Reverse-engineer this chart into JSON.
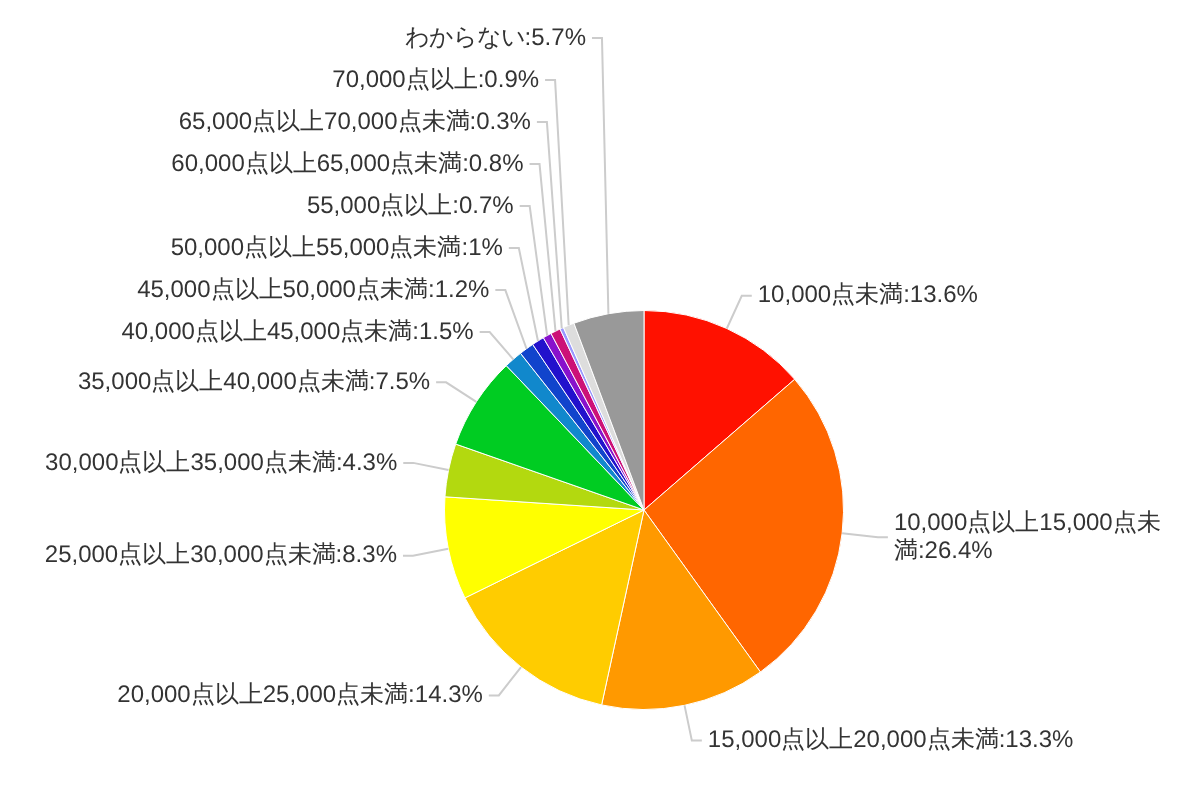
{
  "chart_data": {
    "type": "pie",
    "categories": [
      "10,000点未満",
      "10,000点以上15,000点未満",
      "15,000点以上20,000点未満",
      "20,000点以上25,000点未満",
      "25,000点以上30,000点未満",
      "30,000点以上35,000点未満",
      "35,000点以上40,000点未満",
      "40,000点以上45,000点未満",
      "45,000点以上50,000点未満",
      "50,000点以上55,000点未満",
      "55,000点以上",
      "60,000点以上65,000点未満",
      "65,000点以上70,000点未満",
      "70,000点以上",
      "わからない"
    ],
    "values": [
      13.6,
      26.4,
      13.3,
      14.3,
      8.3,
      4.3,
      7.5,
      1.5,
      1.2,
      1,
      0.7,
      0.8,
      0.3,
      0.9,
      5.7
    ],
    "value_labels": [
      "13.6%",
      "26.4%",
      "13.3%",
      "14.3%",
      "8.3%",
      "4.3%",
      "7.5%",
      "1.5%",
      "1.2%",
      "1%",
      "0.7%",
      "0.8%",
      "0.3%",
      "0.9%",
      "5.7%"
    ],
    "colors": [
      "#ff1100",
      "#ff6600",
      "#ff9900",
      "#ffcc00",
      "#ffff00",
      "#b3d90f",
      "#00cc22",
      "#1188cc",
      "#1144cc",
      "#2211cc",
      "#8811cc",
      "#cc1177",
      "#9999ff",
      "#dddddd",
      "#999999"
    ],
    "legend": false
  }
}
